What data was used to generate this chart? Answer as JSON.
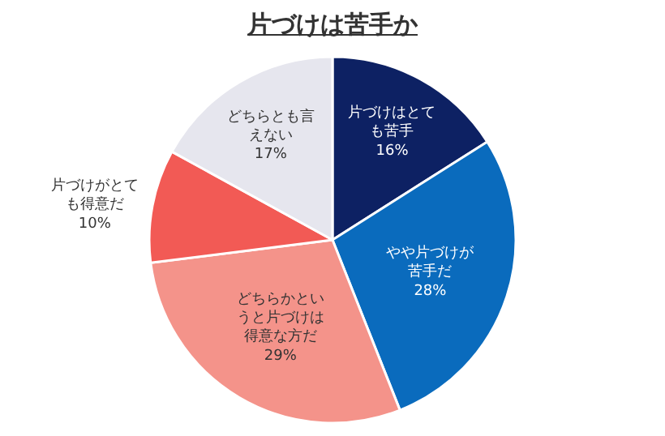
{
  "chart_data": {
    "type": "pie",
    "title": "片づけは苦手か",
    "categories": [
      "片づけはとても苦手",
      "やや片づけが苦手だ",
      "どちらかというと片づけは得意な方だ",
      "片づけがとても得意だ",
      "どちらとも言えない"
    ],
    "values": [
      16,
      28,
      29,
      10,
      17
    ],
    "value_labels": [
      "16%",
      "28%",
      "29%",
      "10%",
      "17%"
    ],
    "colors": [
      "#0d2163",
      "#0a6bbd",
      "#f4938a",
      "#f25a55",
      "#e6e6ee"
    ],
    "legend": false
  }
}
